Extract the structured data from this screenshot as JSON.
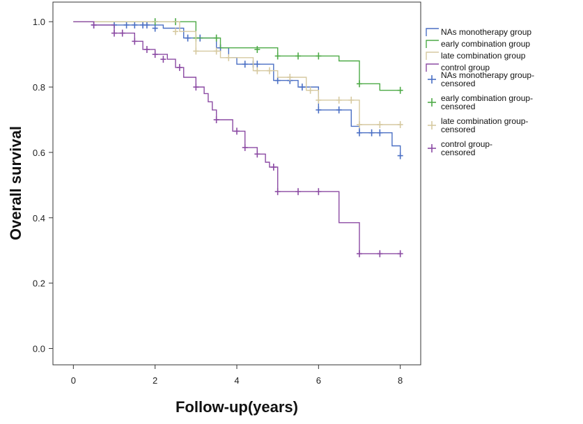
{
  "chart_data": {
    "type": "line",
    "subtype": "kaplan-meier step",
    "xlabel": "Follow-up(years)",
    "ylabel": "Overall survival",
    "xlim": [
      -0.5,
      8.5
    ],
    "ylim": [
      -0.05,
      1.06
    ],
    "xticks": [
      0,
      2,
      4,
      6,
      8
    ],
    "yticks": [
      0.0,
      0.2,
      0.4,
      0.6,
      0.8,
      1.0
    ],
    "ytick_labels": [
      "0.0",
      "0.2",
      "0.4",
      "0.6",
      "0.8",
      "1.0"
    ],
    "grid": false,
    "legend_position": "right",
    "legend": [
      "NAs monotherapy group",
      "early combination group",
      "late combination group",
      "control group",
      "NAs monotherapy group-censored",
      "early combination group-censored",
      "late combination group-censored",
      "control group-censored"
    ],
    "series": [
      {
        "name": "NAs monotherapy group",
        "color": "#4a6fc4",
        "steps": [
          [
            0,
            1.0
          ],
          [
            0.5,
            0.99
          ],
          [
            2.2,
            0.98
          ],
          [
            2.7,
            0.95
          ],
          [
            3.5,
            0.92
          ],
          [
            3.8,
            0.89
          ],
          [
            4.0,
            0.87
          ],
          [
            4.9,
            0.82
          ],
          [
            5.5,
            0.8
          ],
          [
            6.0,
            0.73
          ],
          [
            6.8,
            0.68
          ],
          [
            7.0,
            0.66
          ],
          [
            7.8,
            0.62
          ],
          [
            8.0,
            0.59
          ]
        ],
        "censored": [
          [
            0.5,
            0.99
          ],
          [
            1.0,
            0.99
          ],
          [
            1.3,
            0.99
          ],
          [
            1.5,
            0.99
          ],
          [
            1.7,
            0.99
          ],
          [
            1.8,
            0.99
          ],
          [
            2.0,
            0.98
          ],
          [
            2.8,
            0.95
          ],
          [
            3.1,
            0.95
          ],
          [
            3.6,
            0.92
          ],
          [
            4.2,
            0.87
          ],
          [
            4.4,
            0.87
          ],
          [
            4.5,
            0.87
          ],
          [
            5.0,
            0.82
          ],
          [
            5.3,
            0.82
          ],
          [
            5.6,
            0.8
          ],
          [
            6.0,
            0.73
          ],
          [
            6.5,
            0.73
          ],
          [
            7.0,
            0.66
          ],
          [
            7.3,
            0.66
          ],
          [
            7.5,
            0.66
          ],
          [
            8.0,
            0.59
          ]
        ]
      },
      {
        "name": "early combination group",
        "color": "#4daa46",
        "steps": [
          [
            0,
            1.0
          ],
          [
            3.0,
            0.95
          ],
          [
            3.6,
            0.92
          ],
          [
            5.0,
            0.895
          ],
          [
            6.5,
            0.88
          ],
          [
            7.0,
            0.81
          ],
          [
            7.5,
            0.79
          ],
          [
            8.0,
            0.79
          ]
        ],
        "censored": [
          [
            2.0,
            1.0
          ],
          [
            2.5,
            1.0
          ],
          [
            3.0,
            0.95
          ],
          [
            3.5,
            0.95
          ],
          [
            4.5,
            0.915
          ],
          [
            5.0,
            0.895
          ],
          [
            5.5,
            0.895
          ],
          [
            6.0,
            0.895
          ],
          [
            7.0,
            0.81
          ],
          [
            8.0,
            0.79
          ]
        ]
      },
      {
        "name": "late combination group",
        "color": "#d6c9a0",
        "steps": [
          [
            0,
            1.0
          ],
          [
            2.6,
            0.97
          ],
          [
            3.0,
            0.91
          ],
          [
            3.6,
            0.89
          ],
          [
            4.4,
            0.85
          ],
          [
            5.0,
            0.83
          ],
          [
            5.7,
            0.79
          ],
          [
            6.0,
            0.76
          ],
          [
            7.0,
            0.685
          ],
          [
            8.0,
            0.685
          ]
        ],
        "censored": [
          [
            2.5,
            0.97
          ],
          [
            3.0,
            0.91
          ],
          [
            3.5,
            0.91
          ],
          [
            3.8,
            0.89
          ],
          [
            4.5,
            0.85
          ],
          [
            4.8,
            0.85
          ],
          [
            5.3,
            0.83
          ],
          [
            5.8,
            0.79
          ],
          [
            6.0,
            0.76
          ],
          [
            6.5,
            0.76
          ],
          [
            6.8,
            0.76
          ],
          [
            7.0,
            0.685
          ],
          [
            7.5,
            0.685
          ],
          [
            8.0,
            0.685
          ]
        ]
      },
      {
        "name": "control group",
        "color": "#8b4aa3",
        "steps": [
          [
            0,
            1.0
          ],
          [
            0.5,
            0.99
          ],
          [
            1.0,
            0.965
          ],
          [
            1.5,
            0.94
          ],
          [
            1.7,
            0.915
          ],
          [
            2.0,
            0.9
          ],
          [
            2.3,
            0.885
          ],
          [
            2.5,
            0.86
          ],
          [
            2.7,
            0.83
          ],
          [
            3.0,
            0.8
          ],
          [
            3.2,
            0.78
          ],
          [
            3.3,
            0.755
          ],
          [
            3.4,
            0.73
          ],
          [
            3.5,
            0.7
          ],
          [
            3.9,
            0.665
          ],
          [
            4.2,
            0.615
          ],
          [
            4.5,
            0.595
          ],
          [
            4.7,
            0.57
          ],
          [
            4.8,
            0.555
          ],
          [
            5.0,
            0.48
          ],
          [
            6.5,
            0.385
          ],
          [
            7.0,
            0.29
          ],
          [
            8.0,
            0.29
          ]
        ],
        "censored": [
          [
            0.5,
            0.99
          ],
          [
            1.0,
            0.965
          ],
          [
            1.2,
            0.965
          ],
          [
            1.5,
            0.94
          ],
          [
            1.8,
            0.915
          ],
          [
            2.0,
            0.9
          ],
          [
            2.2,
            0.885
          ],
          [
            2.6,
            0.86
          ],
          [
            3.0,
            0.8
          ],
          [
            3.5,
            0.7
          ],
          [
            4.0,
            0.665
          ],
          [
            4.2,
            0.615
          ],
          [
            4.5,
            0.595
          ],
          [
            4.9,
            0.555
          ],
          [
            5.0,
            0.48
          ],
          [
            5.5,
            0.48
          ],
          [
            6.0,
            0.48
          ],
          [
            7.0,
            0.29
          ],
          [
            7.5,
            0.29
          ],
          [
            8.0,
            0.29
          ]
        ]
      }
    ],
    "legend_entries": [
      {
        "label": "NAs monotherapy group",
        "color": "#4a6fc4",
        "marker": "step"
      },
      {
        "label": "early combination group",
        "color": "#4daa46",
        "marker": "step"
      },
      {
        "label": "late combination group",
        "color": "#d6c9a0",
        "marker": "step"
      },
      {
        "label": "control group",
        "color": "#8b4aa3",
        "marker": "step"
      },
      {
        "label": "NAs monotherapy group-censored",
        "color": "#4a6fc4",
        "marker": "cross"
      },
      {
        "label": "early combination group-censored",
        "color": "#4daa46",
        "marker": "cross"
      },
      {
        "label": "late combination group-censored",
        "color": "#d6c9a0",
        "marker": "cross"
      },
      {
        "label": "control group-censored",
        "color": "#8b4aa3",
        "marker": "cross"
      }
    ]
  }
}
